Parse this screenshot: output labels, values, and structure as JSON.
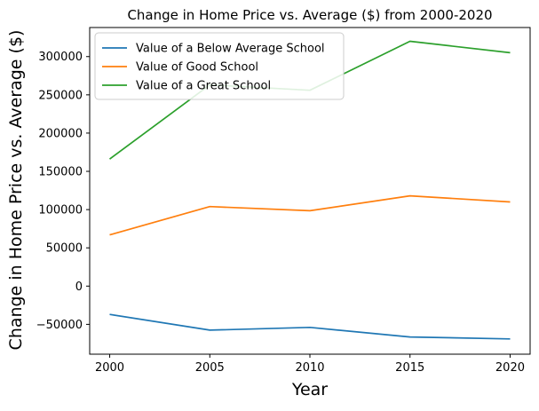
{
  "chart_data": {
    "type": "line",
    "title": "Change in Home Price vs. Average ($) from 2000-2020",
    "xlabel": "Year",
    "ylabel": "Change in Home Price vs. Average ($)",
    "x": [
      2000,
      2005,
      2010,
      2015,
      2020
    ],
    "xlim": [
      1999,
      2021
    ],
    "ylim": [
      -89000,
      338000
    ],
    "xticks": [
      2000,
      2005,
      2010,
      2015,
      2020
    ],
    "yticks": [
      -50000,
      0,
      50000,
      100000,
      150000,
      200000,
      250000,
      300000
    ],
    "grid": false,
    "legend_position": "top-left",
    "series": [
      {
        "name": "Value of a Below Average School",
        "color": "#1f77b4",
        "values": [
          -37000,
          -57500,
          -54000,
          -66500,
          -69000
        ]
      },
      {
        "name": "Value of Good School",
        "color": "#ff7f0e",
        "values": [
          67000,
          104000,
          98500,
          118000,
          110000
        ]
      },
      {
        "name": "Value of a Great School",
        "color": "#2ca02c",
        "values": [
          166000,
          263000,
          256000,
          320000,
          305000
        ]
      }
    ]
  }
}
